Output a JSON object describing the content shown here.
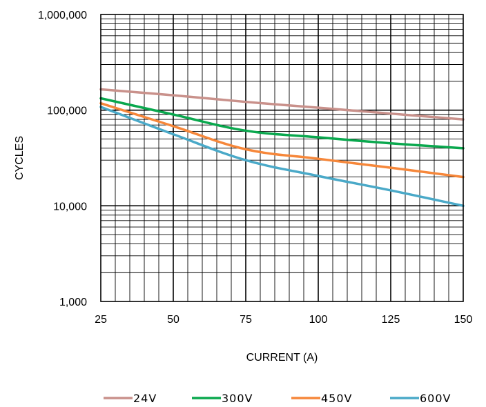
{
  "chart_data": {
    "type": "line",
    "title": "",
    "xlabel": "CURRENT (A)",
    "ylabel": "CYCLES",
    "x_scale": "linear",
    "y_scale": "log",
    "xlim": [
      25,
      150
    ],
    "ylim": [
      1000,
      1000000
    ],
    "x_ticks": [
      25,
      50,
      75,
      100,
      125,
      150
    ],
    "x_tick_labels": [
      "25",
      "50",
      "75",
      "100",
      "125",
      "150"
    ],
    "y_ticks": [
      1000,
      10000,
      100000,
      1000000
    ],
    "y_tick_labels": [
      "1,000",
      "10,000",
      "100,000",
      "1,000,000"
    ],
    "grid": true,
    "legend_position": "bottom",
    "series": [
      {
        "name": "24V",
        "color": "#c9918b",
        "points": [
          [
            25,
            165000
          ],
          [
            50,
            143000
          ],
          [
            75,
            122000
          ],
          [
            100,
            106000
          ],
          [
            125,
            92000
          ],
          [
            150,
            80000
          ]
        ]
      },
      {
        "name": "300V",
        "color": "#0aa84e",
        "points": [
          [
            25,
            133000
          ],
          [
            50,
            90000
          ],
          [
            75,
            61000
          ],
          [
            100,
            52000
          ],
          [
            125,
            45000
          ],
          [
            150,
            40000
          ]
        ]
      },
      {
        "name": "450V",
        "color": "#f6873a",
        "points": [
          [
            25,
            118000
          ],
          [
            50,
            68000
          ],
          [
            75,
            39000
          ],
          [
            100,
            31000
          ],
          [
            125,
            25000
          ],
          [
            150,
            20000
          ]
        ]
      },
      {
        "name": "600V",
        "color": "#4aa9c8",
        "points": [
          [
            25,
            108000
          ],
          [
            50,
            56000
          ],
          [
            75,
            30000
          ],
          [
            100,
            20500
          ],
          [
            125,
            14500
          ],
          [
            150,
            10000
          ]
        ]
      }
    ]
  }
}
